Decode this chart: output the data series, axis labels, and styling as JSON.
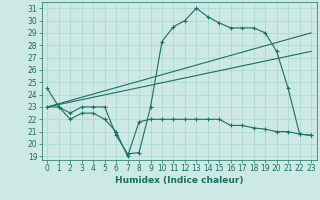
{
  "x": [
    0,
    1,
    2,
    3,
    4,
    5,
    6,
    7,
    8,
    9,
    10,
    11,
    12,
    13,
    14,
    15,
    16,
    17,
    18,
    19,
    20,
    21,
    22,
    23
  ],
  "line1": [
    24.5,
    23.0,
    22.5,
    23.0,
    23.0,
    23.0,
    20.7,
    19.2,
    19.3,
    23.0,
    28.3,
    29.5,
    30.0,
    31.0,
    30.3,
    29.8,
    29.4,
    29.4,
    29.4,
    29.0,
    27.5,
    24.5,
    20.8,
    20.7
  ],
  "line2": [
    23.0,
    23.0,
    22.0,
    22.5,
    22.5,
    22.0,
    21.0,
    19.0,
    21.8,
    22.0,
    22.0,
    22.0,
    22.0,
    22.0,
    22.0,
    22.0,
    21.5,
    21.5,
    21.3,
    21.2,
    21.0,
    21.0,
    20.8,
    20.7
  ],
  "line3_x": [
    0,
    23
  ],
  "line3_y": [
    23.0,
    29.0
  ],
  "line4_x": [
    0,
    23
  ],
  "line4_y": [
    23.0,
    27.5
  ],
  "xlabel": "Humidex (Indice chaleur)",
  "bg_color": "#cce9e4",
  "line_color": "#1a6e62",
  "grid_color": "#a8d8d0",
  "ylim_min": 19,
  "ylim_max": 32,
  "xlim_min": -0.5,
  "xlim_max": 23.5,
  "yticks": [
    19,
    20,
    21,
    22,
    23,
    24,
    25,
    26,
    27,
    28,
    29,
    30,
    31
  ],
  "xticks": [
    0,
    1,
    2,
    3,
    4,
    5,
    6,
    7,
    8,
    9,
    10,
    11,
    12,
    13,
    14,
    15,
    16,
    17,
    18,
    19,
    20,
    21,
    22,
    23
  ],
  "tick_fontsize": 5.5,
  "xlabel_fontsize": 6.5,
  "linewidth": 0.8,
  "marker_size": 3.0
}
